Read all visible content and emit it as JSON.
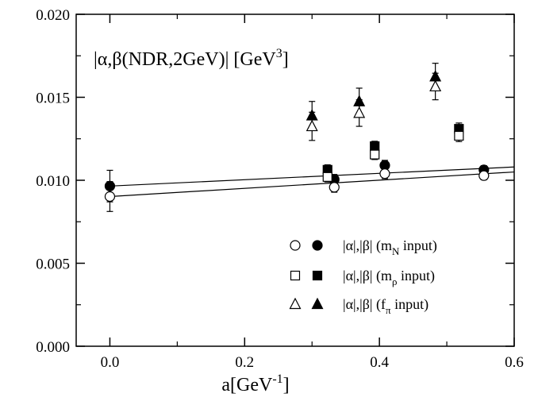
{
  "chart_data": {
    "type": "scatter",
    "title_parts": {
      "main": "|α,β(NDR,2GeV)| [GeV",
      "sup": "3",
      "close": "]"
    },
    "xlabel_parts": {
      "main": "a[GeV",
      "sup": "-1",
      "close": "]"
    },
    "ylabel": "",
    "xlim": [
      -0.05,
      0.6
    ],
    "ylim": [
      0.0,
      0.02
    ],
    "x_ticks": [
      0.0,
      0.2,
      0.4,
      0.6
    ],
    "x_tick_labels": [
      "0.0",
      "0.2",
      "0.4",
      "0.6"
    ],
    "y_ticks": [
      0.0,
      0.005,
      0.01,
      0.015,
      0.02
    ],
    "y_tick_labels": [
      "0.000",
      "0.005",
      "0.010",
      "0.015",
      "0.020"
    ],
    "grid": false,
    "legend_position": "bottom-right",
    "legend": [
      {
        "pre": "|α|,|β| (m",
        "sub": "N",
        "post": " input)",
        "marker": "circle"
      },
      {
        "pre": "|α|,|β| (m",
        "sub": "ρ",
        "post": " input)",
        "marker": "square"
      },
      {
        "pre": "|α|,|β| (f",
        "sub": "π",
        "post": " input)",
        "marker": "triangle"
      }
    ],
    "series": [
      {
        "marker": "circle",
        "filled": true,
        "points": [
          {
            "x": 0.0,
            "y": 0.00965,
            "err": 0.00095
          },
          {
            "x": 0.333,
            "y": 0.01005,
            "err": 0.0003
          },
          {
            "x": 0.408,
            "y": 0.0109,
            "err": 0.0003
          },
          {
            "x": 0.555,
            "y": 0.01063,
            "err": 0.00025
          }
        ]
      },
      {
        "marker": "circle",
        "filled": false,
        "points": [
          {
            "x": 0.0,
            "y": 0.00902,
            "err": 0.0009
          },
          {
            "x": 0.333,
            "y": 0.00958,
            "err": 0.0003
          },
          {
            "x": 0.408,
            "y": 0.0104,
            "err": 0.0003
          },
          {
            "x": 0.555,
            "y": 0.01028,
            "err": 0.00025
          }
        ]
      },
      {
        "marker": "square",
        "filled": true,
        "points": [
          {
            "x": 0.323,
            "y": 0.01063,
            "err": 0.0003
          },
          {
            "x": 0.393,
            "y": 0.01205,
            "err": 0.0003
          },
          {
            "x": 0.518,
            "y": 0.0131,
            "err": 0.00035
          }
        ]
      },
      {
        "marker": "square",
        "filled": false,
        "points": [
          {
            "x": 0.323,
            "y": 0.0102,
            "err": 0.0003
          },
          {
            "x": 0.393,
            "y": 0.01155,
            "err": 0.0003
          },
          {
            "x": 0.518,
            "y": 0.01268,
            "err": 0.00035
          }
        ]
      },
      {
        "marker": "triangle",
        "filled": true,
        "points": [
          {
            "x": 0.3,
            "y": 0.0139,
            "err": 0.00085
          },
          {
            "x": 0.37,
            "y": 0.01475,
            "err": 0.0008
          },
          {
            "x": 0.483,
            "y": 0.01625,
            "err": 0.0008
          }
        ]
      },
      {
        "marker": "triangle",
        "filled": false,
        "points": [
          {
            "x": 0.3,
            "y": 0.01325,
            "err": 0.00085
          },
          {
            "x": 0.37,
            "y": 0.01405,
            "err": 0.0008
          },
          {
            "x": 0.483,
            "y": 0.01565,
            "err": 0.0008
          }
        ]
      }
    ],
    "fit_lines": [
      {
        "x": [
          0.0,
          0.6
        ],
        "y": [
          0.00965,
          0.0108
        ]
      },
      {
        "x": [
          0.0,
          0.6
        ],
        "y": [
          0.00902,
          0.0105
        ]
      }
    ]
  }
}
